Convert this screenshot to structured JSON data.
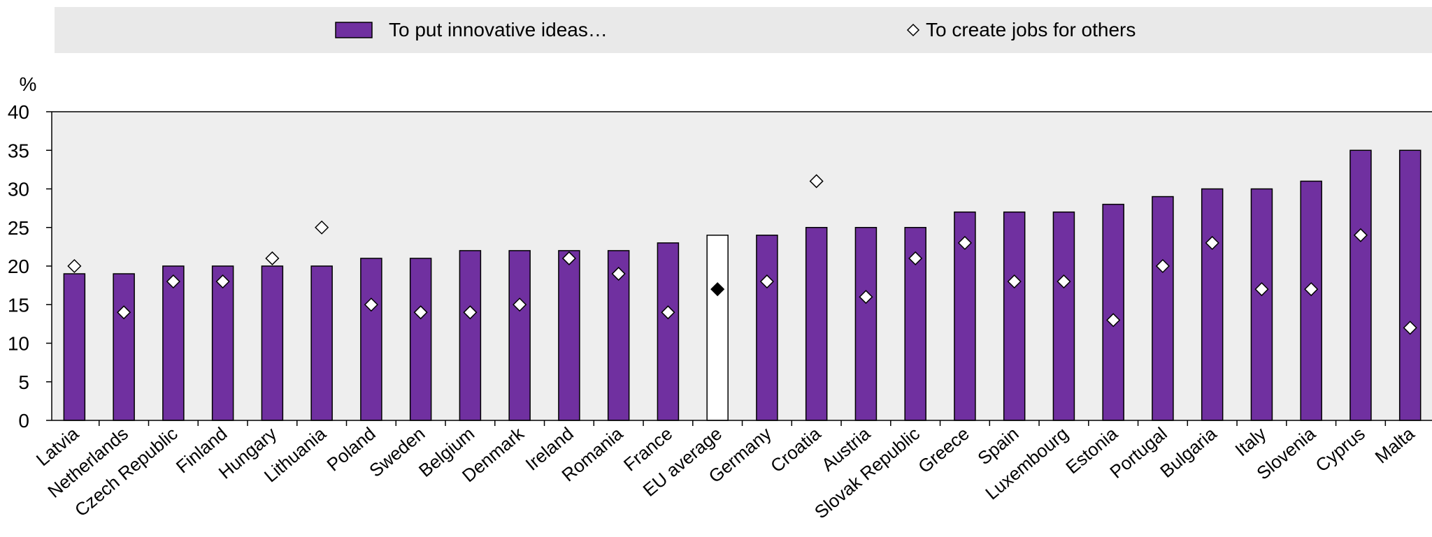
{
  "chart_data": {
    "type": "bar",
    "categories": [
      "Latvia",
      "Netherlands",
      "Czech Republic",
      "Finland",
      "Hungary",
      "Lithuania",
      "Poland",
      "Sweden",
      "Belgium",
      "Denmark",
      "Ireland",
      "Romania",
      "France",
      "EU average",
      "Germany",
      "Croatia",
      "Austria",
      "Slovak Republic",
      "Greece",
      "Spain",
      "Luxembourg",
      "Estonia",
      "Portugal",
      "Bulgaria",
      "Italy",
      "Slovenia",
      "Cyprus",
      "Malta"
    ],
    "series": [
      {
        "name": "To put innovative ideas…",
        "kind": "bar",
        "color": "#7030a0",
        "values": [
          19,
          19,
          20,
          20,
          20,
          20,
          21,
          21,
          22,
          22,
          22,
          22,
          23,
          24,
          24,
          25,
          25,
          25,
          27,
          27,
          27,
          28,
          29,
          30,
          30,
          31,
          35,
          35
        ]
      },
      {
        "name": "To create jobs for others",
        "kind": "marker",
        "marker": "diamond",
        "values": [
          20,
          14,
          18,
          18,
          21,
          25,
          15,
          14,
          14,
          15,
          21,
          19,
          14,
          17,
          18,
          31,
          16,
          21,
          23,
          18,
          18,
          13,
          20,
          23,
          17,
          17,
          24,
          12
        ]
      }
    ],
    "highlight": {
      "category": "EU average",
      "bar_color": "#ffffff",
      "marker_color": "#000000"
    },
    "ylabel": "%",
    "ylim": [
      0,
      40
    ],
    "yticks": [
      0,
      5,
      10,
      15,
      20,
      25,
      30,
      35,
      40
    ],
    "grid": false,
    "legend_position": "top",
    "plot_background": "#eeeeee",
    "legend_background": "#e9e9e9"
  }
}
